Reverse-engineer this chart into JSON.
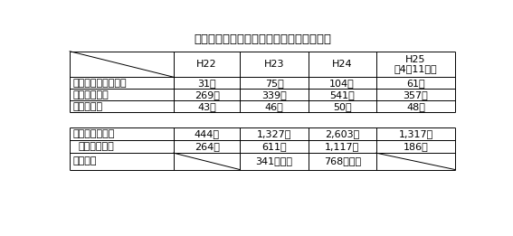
{
  "title": "地産外商公社の外商活動実績の年度別推移",
  "col_headers": [
    "H22",
    "H23",
    "H24",
    "H25\n（4～11月）"
  ],
  "section1_rows": [
    [
      "店舗での試食商談会",
      "31回",
      "75回",
      "104回",
      "61回"
    ],
    [
      "営業訪問件数",
      "269件",
      "339件",
      "541件",
      "357件"
    ],
    [
      "高知フェア",
      "43回",
      "46回",
      "50回",
      "48回"
    ]
  ],
  "section2_rows": [
    [
      "外商の成約件数",
      "444件",
      "1,327件",
      "2,603件",
      "1,317件"
    ],
    [
      "うち定番採用",
      "264件",
      "611件",
      "1,117件",
      "186件"
    ],
    [
      "成約金額",
      "",
      "341百万円",
      "768百万円",
      ""
    ]
  ],
  "bg_color": "#ffffff",
  "line_color": "#000000",
  "text_color": "#000000",
  "title_fontsize": 9.5,
  "cell_fontsize": 8.0
}
